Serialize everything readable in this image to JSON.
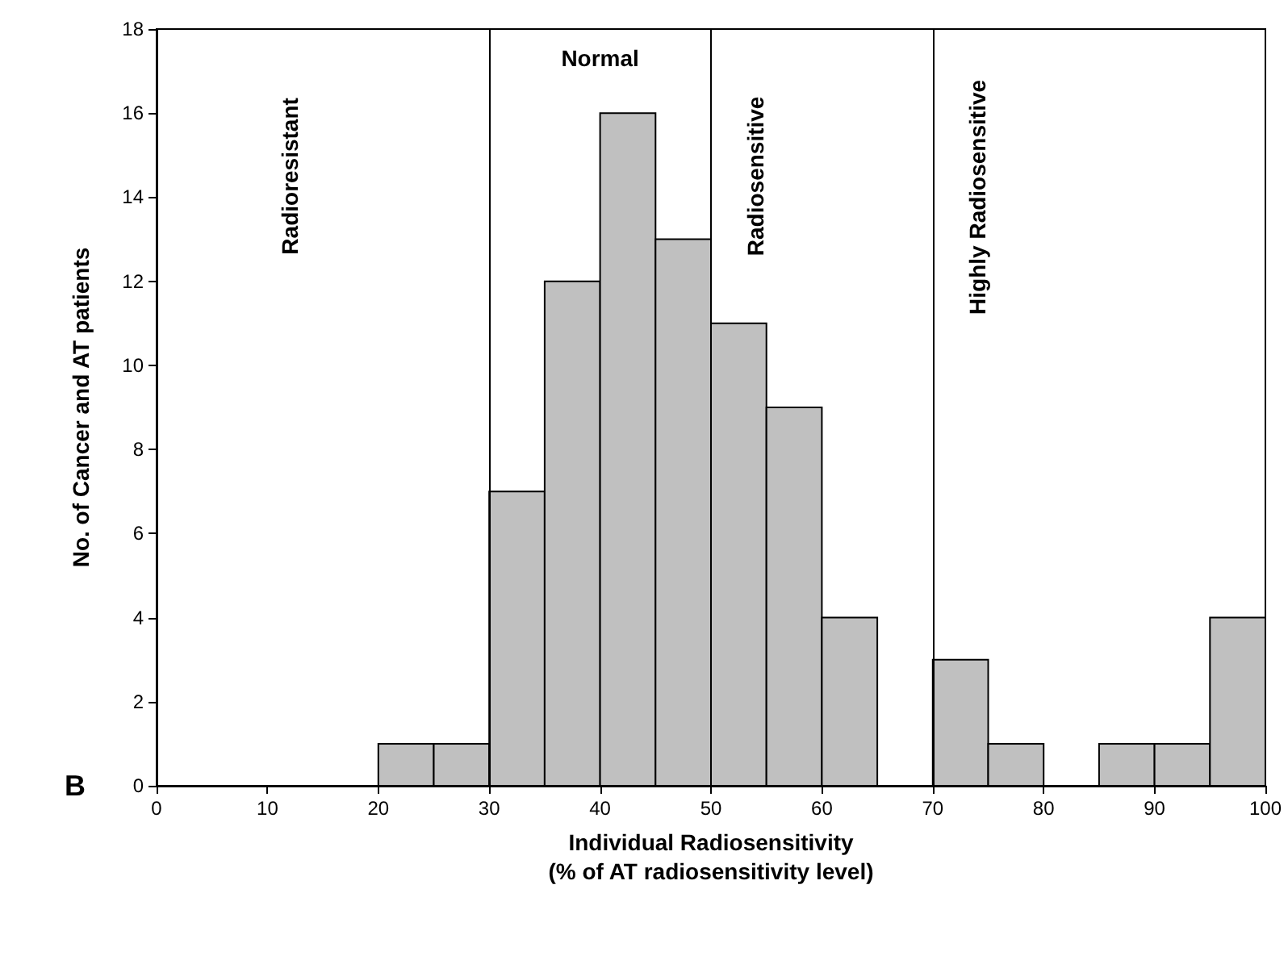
{
  "chart_data": {
    "type": "histogram",
    "xlabel": "Individual Radiosensitivity\n(% of AT radiosensitivity level)",
    "ylabel": "No. of Cancer and AT patients",
    "bins": [
      20,
      25,
      30,
      35,
      40,
      45,
      50,
      55,
      60,
      65,
      70,
      75,
      80,
      85,
      90,
      95,
      100
    ],
    "values": [
      1,
      1,
      7,
      12,
      16,
      13,
      11,
      9,
      4,
      0,
      3,
      1,
      0,
      1,
      1,
      4
    ],
    "color": "#c0c0c0",
    "xlim": [
      0,
      100
    ],
    "xticks": [
      0,
      10,
      20,
      30,
      40,
      50,
      60,
      70,
      80,
      90,
      100
    ],
    "ylim": [
      0,
      18
    ],
    "yticks": [
      0,
      2,
      4,
      6,
      8,
      10,
      12,
      14,
      16,
      18
    ],
    "grid": false,
    "ref_lines": [
      {
        "axis": "x",
        "value": 30,
        "color": "#000000"
      },
      {
        "axis": "x",
        "value": 50,
        "color": "#000000"
      },
      {
        "axis": "x",
        "value": 70,
        "color": "#000000"
      }
    ],
    "annotations": [
      "Radioresistant",
      "Normal",
      "Radiosensitive",
      "Highly Radiosensitive",
      "B"
    ]
  }
}
